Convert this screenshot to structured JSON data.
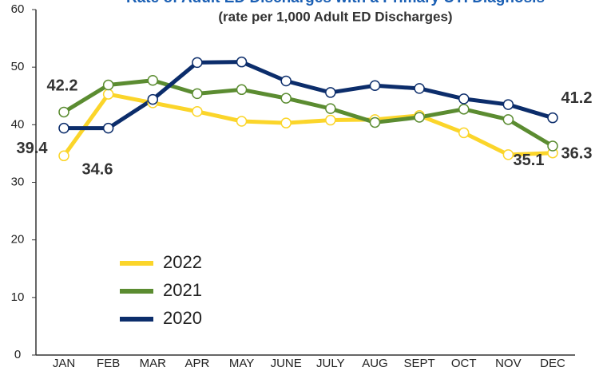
{
  "chart_data": {
    "type": "line",
    "title": "Rate of Adult ED Discharges with a Primary UTI Diagnosis",
    "subtitle": "(rate per 1,000 Adult ED Discharges)",
    "categories": [
      "JAN",
      "FEB",
      "MAR",
      "APR",
      "MAY",
      "JUNE",
      "JULY",
      "AUG",
      "SEPT",
      "OCT",
      "NOV",
      "DEC"
    ],
    "series": [
      {
        "name": "2022",
        "color": "#fbd52a",
        "values": [
          34.6,
          45.3,
          43.8,
          42.3,
          40.6,
          40.3,
          40.8,
          40.9,
          41.6,
          38.6,
          34.8,
          35.1
        ]
      },
      {
        "name": "2021",
        "color": "#5b8c31",
        "values": [
          42.2,
          46.9,
          47.7,
          45.4,
          46.1,
          44.6,
          42.8,
          40.4,
          41.3,
          42.7,
          40.9,
          36.3
        ]
      },
      {
        "name": "2020",
        "color": "#0c2d6b",
        "values": [
          39.4,
          39.4,
          44.4,
          50.8,
          50.9,
          47.6,
          45.6,
          46.8,
          46.3,
          44.5,
          43.5,
          41.2
        ]
      }
    ],
    "ylim": [
      0,
      60
    ],
    "yticks": [
      0,
      10,
      20,
      30,
      40,
      50,
      60
    ]
  }
}
